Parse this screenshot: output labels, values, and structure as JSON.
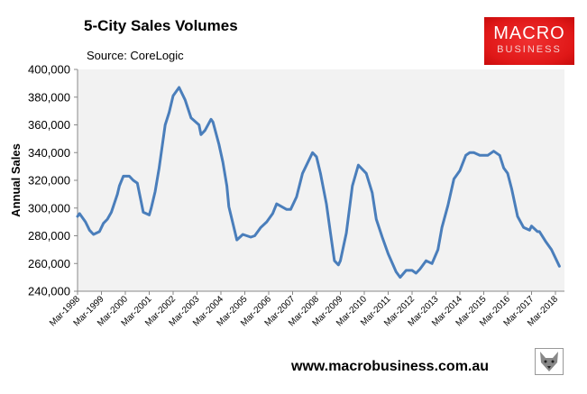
{
  "header": {
    "title": "5-City Sales Volumes",
    "source": "Source: CoreLogic"
  },
  "logo": {
    "line1": "MACRO",
    "line2": "BUSINESS",
    "color": "#e01818"
  },
  "footer": {
    "website": "www.macrobusiness.com.au",
    "wolf_icon": "wolf-head-icon"
  },
  "chart_data": {
    "type": "line",
    "title": "5-City Sales Volumes",
    "subtitle": "Source: CoreLogic",
    "xlabel": "",
    "ylabel": "Annual Sales",
    "ylim": [
      240000,
      400000
    ],
    "yticks": [
      "240,000",
      "260,000",
      "280,000",
      "300,000",
      "320,000",
      "340,000",
      "360,000",
      "380,000",
      "400,000"
    ],
    "xticks": [
      "Mar-1998",
      "Mar-1999",
      "Mar-2000",
      "Mar-2001",
      "Mar-2002",
      "Mar-2003",
      "Mar-2004",
      "Mar-2005",
      "Mar-2006",
      "Mar-2007",
      "Mar-2008",
      "Mar-2009",
      "Mar-2010",
      "Mar-2011",
      "Mar-2012",
      "Mar-2013",
      "Mar-2014",
      "Mar-2015",
      "Mar-2016",
      "Mar-2017",
      "Mar-2018"
    ],
    "grid": false,
    "legend": "none",
    "line_color": "#4a7ebb",
    "plot_background": "#f2f2f2",
    "series": [
      {
        "x": [
          "1998-03",
          "1998-04",
          "1998-07",
          "1998-09",
          "1998-11",
          "1999-02",
          "1999-04",
          "1999-06",
          "1999-08",
          "1999-11",
          "1999-12",
          "2000-02",
          "2000-05",
          "2000-07",
          "2000-09",
          "2000-11",
          "2000-12",
          "2001-03",
          "2001-04",
          "2001-06",
          "2001-08",
          "2001-11",
          "2002-01",
          "2002-03",
          "2002-06",
          "2002-09",
          "2002-12",
          "2003-04",
          "2003-05",
          "2003-07",
          "2003-10",
          "2003-11",
          "2004-02",
          "2004-04",
          "2004-06",
          "2004-07",
          "2004-11",
          "2005-02",
          "2005-06",
          "2005-08",
          "2005-11",
          "2006-02",
          "2006-05",
          "2006-07",
          "2006-12",
          "2007-02",
          "2007-05",
          "2007-08",
          "2008-01",
          "2008-03",
          "2008-05",
          "2008-08",
          "2008-10",
          "2008-12",
          "2009-02",
          "2009-03",
          "2009-06",
          "2009-09",
          "2009-12",
          "2010-04",
          "2010-07",
          "2010-09",
          "2010-12",
          "2011-03",
          "2011-07",
          "2011-09",
          "2011-12",
          "2012-03",
          "2012-05",
          "2012-07",
          "2012-10",
          "2013-01",
          "2013-04",
          "2013-06",
          "2013-09",
          "2013-12",
          "2014-03",
          "2014-06",
          "2014-08",
          "2014-10",
          "2015-01",
          "2015-05",
          "2015-08",
          "2015-11",
          "2016-01",
          "2016-03",
          "2016-05",
          "2016-08",
          "2016-11",
          "2017-02",
          "2017-03",
          "2017-06",
          "2017-07",
          "2017-10",
          "2018-01",
          "2018-05"
        ],
        "values": [
          294000,
          296000,
          290000,
          284000,
          281000,
          283000,
          289000,
          292000,
          297000,
          310000,
          316000,
          323000,
          323000,
          320000,
          318000,
          304000,
          297000,
          295000,
          300000,
          312000,
          329000,
          360000,
          369000,
          381000,
          387000,
          378000,
          365000,
          360000,
          353000,
          356000,
          364000,
          362000,
          346000,
          333000,
          316000,
          301000,
          277000,
          281000,
          279000,
          280000,
          286000,
          290000,
          296000,
          303000,
          299000,
          299000,
          308000,
          325000,
          340000,
          337000,
          325000,
          303000,
          282000,
          262000,
          259000,
          262000,
          282000,
          316000,
          331000,
          325000,
          311000,
          292000,
          279000,
          267000,
          254000,
          250000,
          255000,
          255000,
          253000,
          256000,
          262000,
          260000,
          270000,
          286000,
          302000,
          321000,
          327000,
          338000,
          340000,
          340000,
          338000,
          338000,
          341000,
          338000,
          329000,
          325000,
          314000,
          294000,
          286000,
          284000,
          287000,
          283000,
          283000,
          276000,
          270000,
          258000
        ]
      }
    ]
  }
}
